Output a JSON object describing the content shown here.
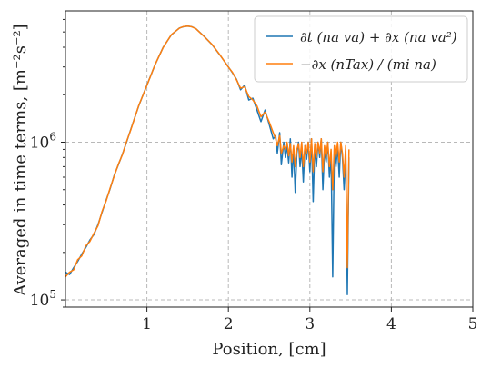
{
  "chart_data": {
    "type": "line",
    "title": "",
    "xlabel": "Position, [cm]",
    "ylabel": "Averaged in time terms, [m⁻²s⁻²]",
    "xlim": [
      0,
      5
    ],
    "ylim": [
      90000,
      6800000
    ],
    "yscale": "log",
    "grid": true,
    "legend_position": "top-right",
    "x_ticks": [
      {
        "value": 1,
        "label": "1"
      },
      {
        "value": 2,
        "label": "2"
      },
      {
        "value": 3,
        "label": "3"
      },
      {
        "value": 4,
        "label": "4"
      },
      {
        "value": 5,
        "label": "5"
      }
    ],
    "y_ticks": [
      {
        "value": 100000,
        "label": "10⁵",
        "base": "10",
        "exp": "5"
      },
      {
        "value": 1000000,
        "label": "10⁶",
        "base": "10",
        "exp": "6"
      }
    ],
    "series": [
      {
        "name": "∂t (na va) + ∂x (na va²)",
        "color": "#1f77b4",
        "x": [
          0.0,
          0.05,
          0.1,
          0.15,
          0.2,
          0.25,
          0.3,
          0.35,
          0.4,
          0.45,
          0.5,
          0.55,
          0.6,
          0.65,
          0.7,
          0.75,
          0.8,
          0.9,
          1.0,
          1.1,
          1.2,
          1.3,
          1.4,
          1.45,
          1.5,
          1.55,
          1.6,
          1.7,
          1.8,
          1.9,
          2.0,
          2.05,
          2.1,
          2.15,
          2.2,
          2.25,
          2.3,
          2.35,
          2.4,
          2.45,
          2.5,
          2.55,
          2.58,
          2.6,
          2.63,
          2.65,
          2.68,
          2.7,
          2.72,
          2.74,
          2.76,
          2.78,
          2.8,
          2.82,
          2.84,
          2.86,
          2.88,
          2.9,
          2.92,
          2.94,
          2.96,
          2.98,
          3.0,
          3.02,
          3.04,
          3.06,
          3.08,
          3.1,
          3.12,
          3.14,
          3.16,
          3.18,
          3.2,
          3.22,
          3.24,
          3.26,
          3.28,
          3.3,
          3.32,
          3.34,
          3.36,
          3.38,
          3.4,
          3.42,
          3.44,
          3.46,
          3.48
        ],
        "y": [
          150000,
          145000,
          160000,
          175000,
          195000,
          215000,
          240000,
          260000,
          300000,
          360000,
          430000,
          510000,
          620000,
          720000,
          840000,
          1000000,
          1200000,
          1700000,
          2300000,
          3100000,
          4000000,
          4800000,
          5300000,
          5400000,
          5450000,
          5400000,
          5250000,
          4700000,
          4150000,
          3550000,
          3000000,
          2750000,
          2500000,
          2150000,
          2300000,
          1850000,
          1900000,
          1600000,
          1350000,
          1600000,
          1300000,
          1050000,
          1100000,
          850000,
          1150000,
          720000,
          1000000,
          800000,
          950000,
          740000,
          1050000,
          600000,
          900000,
          480000,
          850000,
          1000000,
          700000,
          900000,
          560000,
          950000,
          780000,
          1000000,
          650000,
          1050000,
          420000,
          950000,
          700000,
          1000000,
          800000,
          1050000,
          500000,
          900000,
          750000,
          1000000,
          600000,
          850000,
          140000,
          900000,
          700000,
          950000,
          600000,
          1000000,
          800000,
          500000,
          900000,
          108000,
          800000
        ]
      },
      {
        "name": "−∂x (nTax) / (mi na)",
        "color": "#ff7f0e",
        "x": [
          0.0,
          0.05,
          0.1,
          0.15,
          0.2,
          0.25,
          0.3,
          0.35,
          0.4,
          0.45,
          0.5,
          0.55,
          0.6,
          0.65,
          0.7,
          0.75,
          0.8,
          0.9,
          1.0,
          1.1,
          1.2,
          1.3,
          1.4,
          1.45,
          1.5,
          1.55,
          1.6,
          1.7,
          1.8,
          1.9,
          2.0,
          2.05,
          2.1,
          2.15,
          2.2,
          2.25,
          2.3,
          2.35,
          2.4,
          2.45,
          2.5,
          2.55,
          2.58,
          2.6,
          2.63,
          2.65,
          2.68,
          2.7,
          2.72,
          2.74,
          2.76,
          2.78,
          2.8,
          2.82,
          2.84,
          2.86,
          2.88,
          2.9,
          2.92,
          2.94,
          2.96,
          2.98,
          3.0,
          3.02,
          3.04,
          3.06,
          3.08,
          3.1,
          3.12,
          3.14,
          3.16,
          3.18,
          3.2,
          3.22,
          3.24,
          3.26,
          3.28,
          3.3,
          3.32,
          3.34,
          3.36,
          3.38,
          3.4,
          3.42,
          3.44,
          3.46,
          3.48
        ],
        "y": [
          140000,
          150000,
          155000,
          180000,
          190000,
          220000,
          235000,
          265000,
          295000,
          365000,
          425000,
          515000,
          615000,
          725000,
          835000,
          1010000,
          1190000,
          1710000,
          2290000,
          3110000,
          3990000,
          4810000,
          5290000,
          5410000,
          5440000,
          5390000,
          5240000,
          4690000,
          4160000,
          3560000,
          2990000,
          2770000,
          2480000,
          2200000,
          2250000,
          1950000,
          1850000,
          1700000,
          1450000,
          1550000,
          1350000,
          1150000,
          1050000,
          950000,
          1100000,
          850000,
          950000,
          900000,
          1000000,
          820000,
          980000,
          750000,
          950000,
          700000,
          900000,
          980000,
          800000,
          1000000,
          700000,
          950000,
          850000,
          1000000,
          750000,
          1050000,
          650000,
          980000,
          800000,
          1000000,
          850000,
          1050000,
          650000,
          950000,
          800000,
          1000000,
          700000,
          900000,
          500000,
          950000,
          800000,
          1000000,
          750000,
          1000000,
          850000,
          600000,
          950000,
          160000,
          900000
        ]
      }
    ]
  }
}
